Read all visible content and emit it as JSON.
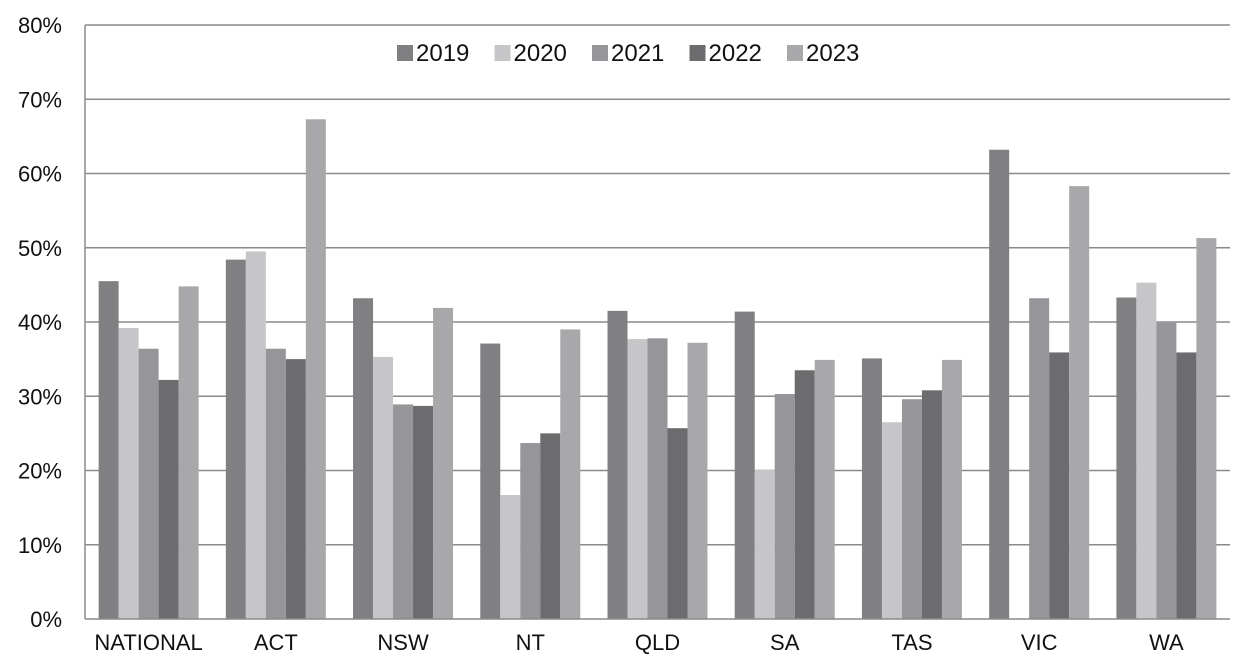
{
  "chart_data": {
    "type": "bar",
    "title": "",
    "xlabel": "",
    "ylabel": "",
    "categories": [
      "NATIONAL",
      "ACT",
      "NSW",
      "NT",
      "QLD",
      "SA",
      "TAS",
      "VIC",
      "WA"
    ],
    "ylim": [
      0,
      80
    ],
    "yticks": [
      "0%",
      "10%",
      "20%",
      "30%",
      "40%",
      "50%",
      "60%",
      "70%",
      "80%"
    ],
    "grid": true,
    "legend_position": "top-center",
    "series": [
      {
        "name": "2019",
        "color": "#808083",
        "values": [
          45.5,
          48.4,
          43.2,
          37.1,
          41.5,
          41.4,
          35.1,
          63.2,
          43.3
        ]
      },
      {
        "name": "2020",
        "color": "#c6c6c8",
        "values": [
          39.2,
          49.5,
          35.3,
          16.7,
          37.7,
          20.1,
          26.5,
          null,
          45.3
        ]
      },
      {
        "name": "2021",
        "color": "#96969a",
        "values": [
          36.4,
          36.4,
          28.9,
          23.7,
          37.8,
          30.3,
          29.6,
          43.2,
          39.9
        ]
      },
      {
        "name": "2022",
        "color": "#6c6c6f",
        "values": [
          32.2,
          35.0,
          28.7,
          25.0,
          25.7,
          33.5,
          30.8,
          35.9,
          35.9
        ]
      },
      {
        "name": "2023",
        "color": "#a8a8ab",
        "values": [
          44.8,
          67.3,
          41.9,
          39.0,
          37.2,
          34.9,
          34.9,
          58.3,
          51.3
        ]
      }
    ]
  }
}
